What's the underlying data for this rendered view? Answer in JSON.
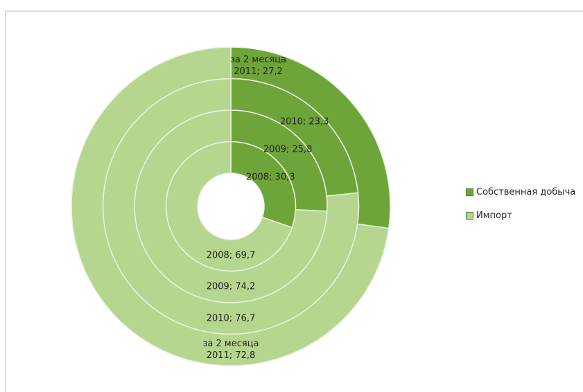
{
  "chart_data": {
    "type": "donut",
    "categories": [
      "2008",
      "2009",
      "2010",
      "за 2 месяца 2011"
    ],
    "series": [
      {
        "name": "Собственная добыча",
        "color": "#6ea53a",
        "values": [
          30.3,
          25.8,
          23.3,
          27.2
        ],
        "value_labels": [
          "2008; 30,3",
          "2009; 25,8",
          "2010; 23,3",
          "за 2 месяца 2011; 27,2"
        ]
      },
      {
        "name": "Импорт",
        "color": "#b6d690",
        "values": [
          69.7,
          74.2,
          76.7,
          72.8
        ],
        "value_labels": [
          "2008; 69,7",
          "2009; 74,2",
          "2010; 76,7",
          "за 2 месяца 2011; 72,8"
        ]
      }
    ],
    "legend": "right"
  }
}
